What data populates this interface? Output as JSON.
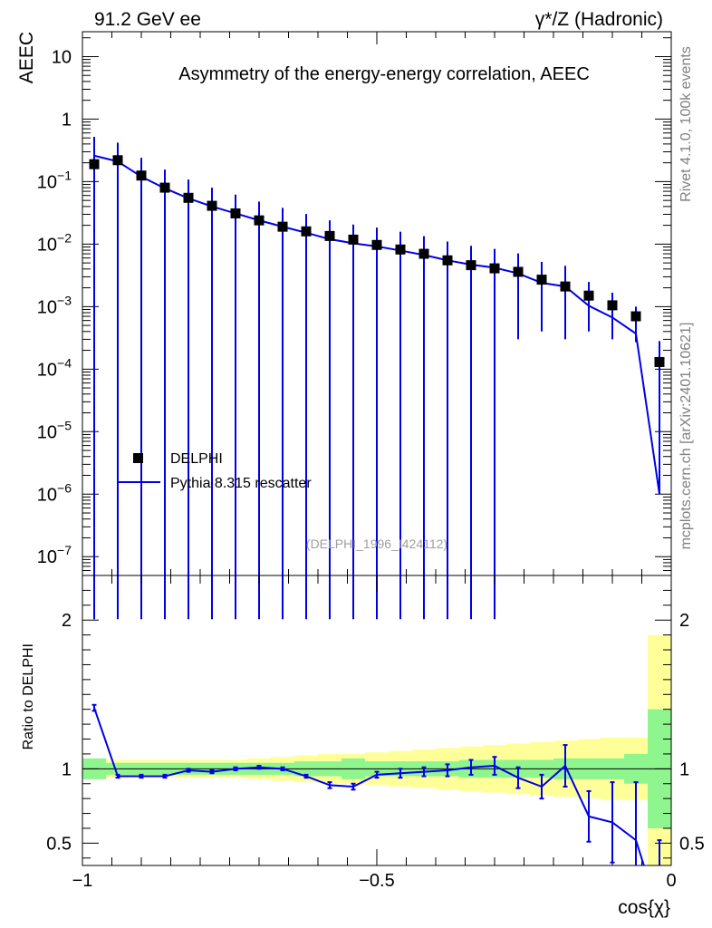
{
  "header": {
    "left": "91.2 GeV ee",
    "right": "γ*/Z (Hadronic)"
  },
  "side_text": {
    "version": "Rivet 4.1.0,  100k events",
    "source": "mcplots.cern.ch [arXiv:2401.10621]"
  },
  "colors": {
    "mc": "#0000e6",
    "data": "#000000",
    "band_inner": "#8ff58f",
    "band_outer": "#ffff99",
    "watermark": "#a0a0a0",
    "side_text": "#808080"
  },
  "chart_data": [
    {
      "type": "scatter",
      "title": "Asymmetry of the energy-energy correlation, AEEC",
      "ylabel": "AEEC",
      "xlabel": "cos{χ}",
      "yscale": "log",
      "xlim": [
        -1.0,
        0.0
      ],
      "ylim": [
        5e-08,
        25
      ],
      "y_ticks": [
        {
          "value": 10,
          "base": "10",
          "exp": ""
        },
        {
          "value": 1,
          "base": "1",
          "exp": ""
        },
        {
          "value": 0.1,
          "base": "10",
          "exp": "−1"
        },
        {
          "value": 0.01,
          "base": "10",
          "exp": "−2"
        },
        {
          "value": 0.001,
          "base": "10",
          "exp": "−3"
        },
        {
          "value": 0.0001,
          "base": "10",
          "exp": "−4"
        },
        {
          "value": 1e-05,
          "base": "10",
          "exp": "−5"
        },
        {
          "value": 1e-06,
          "base": "10",
          "exp": "−6"
        },
        {
          "value": 1e-07,
          "base": "10",
          "exp": "−7"
        }
      ],
      "watermark": "(DELPHI_1996_I424112)",
      "legend": {
        "position": "lower-left",
        "entries": [
          {
            "label": "DELPHI",
            "style": "marker"
          },
          {
            "label": "Pythia 8.315 rescatter",
            "style": "line"
          }
        ]
      },
      "x": [
        -0.98,
        -0.94,
        -0.9,
        -0.86,
        -0.82,
        -0.78,
        -0.74,
        -0.7,
        -0.66,
        -0.62,
        -0.58,
        -0.54,
        -0.5,
        -0.46,
        -0.42,
        -0.38,
        -0.34,
        -0.3,
        -0.26,
        -0.22,
        -0.18,
        -0.14,
        -0.1,
        -0.06,
        -0.02
      ],
      "series": [
        {
          "name": "DELPHI",
          "values": [
            0.19,
            0.22,
            0.125,
            0.08,
            0.055,
            0.041,
            0.031,
            0.024,
            0.019,
            0.016,
            0.0135,
            0.0118,
            0.0097,
            0.0082,
            0.007,
            0.0055,
            0.0046,
            0.0041,
            0.0036,
            0.0027,
            0.0021,
            0.0015,
            0.00105,
            0.0007,
            0.00013
          ]
        },
        {
          "name": "Pythia 8.315 rescatter",
          "values": [
            0.26,
            0.21,
            0.12,
            0.078,
            0.054,
            0.04,
            0.031,
            0.024,
            0.019,
            0.0152,
            0.012,
            0.0103,
            0.0092,
            0.0079,
            0.0067,
            0.0055,
            0.0047,
            0.0042,
            0.0034,
            0.0024,
            0.0021,
            0.00103,
            0.00067,
            0.00037,
            1e-06
          ],
          "err_low": [
            0.26,
            0.21,
            0.12,
            0.078,
            0.054,
            0.04,
            0.031,
            0.024,
            0.019,
            0.0152,
            0.012,
            0.0103,
            0.0092,
            0.0079,
            0.0067,
            0.0055,
            0.0047,
            0.0042,
            0.0031,
            0.002,
            0.0018,
            0.00063,
            0.00037,
            0.0001,
            1e-08
          ],
          "err_high": [
            0.26,
            0.21,
            0.12,
            0.078,
            0.054,
            0.04,
            0.031,
            0.024,
            0.019,
            0.0152,
            0.012,
            0.0103,
            0.0092,
            0.0079,
            0.0067,
            0.0055,
            0.0047,
            0.0042,
            0.0037,
            0.0028,
            0.0024,
            0.00145,
            0.001,
            0.00063,
            0.00028
          ]
        }
      ]
    },
    {
      "type": "line",
      "ylabel": "Ratio to DELPHI",
      "xlabel": "cos{χ}",
      "xlim": [
        -1.0,
        0.0
      ],
      "ylim": [
        0.35,
        2.3
      ],
      "y_ticks": [
        0.5,
        1,
        2
      ],
      "y_tick_labels": [
        "0.5",
        "1",
        "2"
      ],
      "x_ticks": [
        -1,
        -0.5,
        0
      ],
      "x_tick_labels": [
        "−1",
        "−0.5",
        "0"
      ],
      "x": [
        -0.98,
        -0.94,
        -0.9,
        -0.86,
        -0.82,
        -0.78,
        -0.74,
        -0.7,
        -0.66,
        -0.62,
        -0.58,
        -0.54,
        -0.5,
        -0.46,
        -0.42,
        -0.38,
        -0.34,
        -0.3,
        -0.26,
        -0.22,
        -0.18,
        -0.14,
        -0.1,
        -0.06,
        -0.02
      ],
      "bin_edges": [
        -1.0,
        -0.96,
        -0.92,
        -0.88,
        -0.84,
        -0.8,
        -0.76,
        -0.72,
        -0.68,
        -0.64,
        -0.6,
        -0.56,
        -0.52,
        -0.48,
        -0.44,
        -0.4,
        -0.36,
        -0.32,
        -0.28,
        -0.24,
        -0.2,
        -0.16,
        -0.12,
        -0.08,
        -0.04,
        0.0
      ],
      "band_inner": [
        0.07,
        0.04,
        0.04,
        0.04,
        0.04,
        0.04,
        0.04,
        0.04,
        0.04,
        0.05,
        0.05,
        0.07,
        0.05,
        0.05,
        0.05,
        0.05,
        0.06,
        0.06,
        0.06,
        0.06,
        0.07,
        0.07,
        0.07,
        0.1,
        0.4
      ],
      "band_outer": [
        0.07,
        0.06,
        0.06,
        0.06,
        0.06,
        0.06,
        0.06,
        0.07,
        0.08,
        0.09,
        0.1,
        0.1,
        0.11,
        0.12,
        0.13,
        0.14,
        0.15,
        0.16,
        0.17,
        0.18,
        0.19,
        0.2,
        0.21,
        0.21,
        0.9
      ],
      "series": [
        {
          "name": "Pythia 8.315 rescatter / DELPHI",
          "values": [
            1.41,
            0.95,
            0.95,
            0.95,
            0.99,
            0.98,
            1.0,
            1.01,
            1.0,
            0.95,
            0.89,
            0.88,
            0.96,
            0.97,
            0.98,
            0.99,
            1.01,
            1.02,
            0.94,
            0.88,
            1.02,
            0.68,
            0.64,
            0.52,
            0.02
          ],
          "err": [
            0.02,
            0.01,
            0.01,
            0.01,
            0.01,
            0.01,
            0.01,
            0.01,
            0.01,
            0.01,
            0.02,
            0.02,
            0.02,
            0.03,
            0.03,
            0.04,
            0.05,
            0.06,
            0.07,
            0.08,
            0.14,
            0.17,
            0.27,
            0.39,
            0.5
          ]
        }
      ]
    }
  ]
}
